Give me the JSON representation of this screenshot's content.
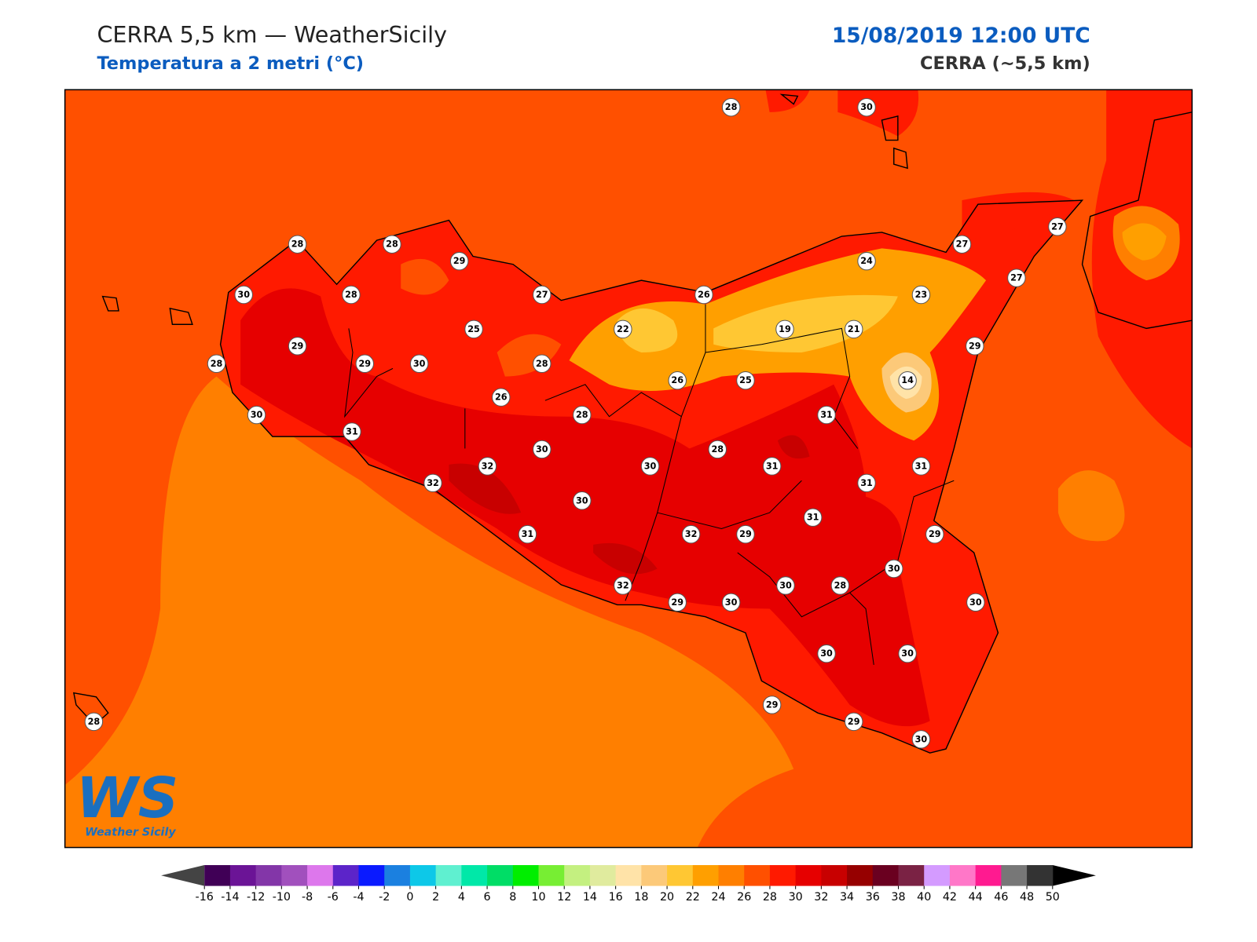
{
  "header": {
    "title": "CERRA 5,5 km — WeatherSicily",
    "subtitle": "Temperatura a 2 metri (°C)",
    "date": "15/08/2019 12:00 UTC",
    "model": "CERRA (~5,5 km)"
  },
  "stations": [
    28,
    30,
    28,
    28,
    29,
    30,
    28,
    27,
    26,
    24,
    27,
    27,
    27,
    23,
    25,
    22,
    19,
    21,
    29,
    29,
    28,
    29,
    30,
    28,
    14,
    26,
    25,
    26,
    30,
    28,
    31,
    31,
    30,
    28,
    32,
    30,
    31,
    31,
    32,
    31,
    30,
    31,
    31,
    32,
    29,
    29,
    30,
    32,
    30,
    28,
    29,
    30,
    30,
    30,
    30,
    29,
    29,
    30,
    28
  ],
  "colorbar": {
    "ticks": [
      -16,
      -14,
      -12,
      -10,
      -8,
      -6,
      -4,
      -2,
      0,
      2,
      4,
      6,
      8,
      10,
      12,
      14,
      16,
      18,
      20,
      22,
      24,
      26,
      28,
      30,
      32,
      34,
      36,
      38,
      40,
      42,
      44,
      46,
      48,
      50
    ],
    "colors": [
      "#400056",
      "#6b1496",
      "#8336a8",
      "#a150bd",
      "#dd77ec",
      "#5c24c9",
      "#0a1aff",
      "#1b80e0",
      "#0dc8e8",
      "#5ff0d0",
      "#00e8a8",
      "#00dd66",
      "#00ee00",
      "#77ee33",
      "#c4f080",
      "#e0eb9e",
      "#ffe3a8",
      "#fcc979",
      "#ffc733",
      "#ff9f00",
      "#ff7f00",
      "#ff5000",
      "#ff1a00",
      "#e60000",
      "#c80000",
      "#960000",
      "#6a0020",
      "#7a2244",
      "#d49bff",
      "#ff77c8",
      "#ff1a90",
      "#777777",
      "#333333"
    ],
    "under": "#444444",
    "over": "#000000"
  },
  "logo": {
    "letters": "WS",
    "text": "Weather Sicily"
  }
}
